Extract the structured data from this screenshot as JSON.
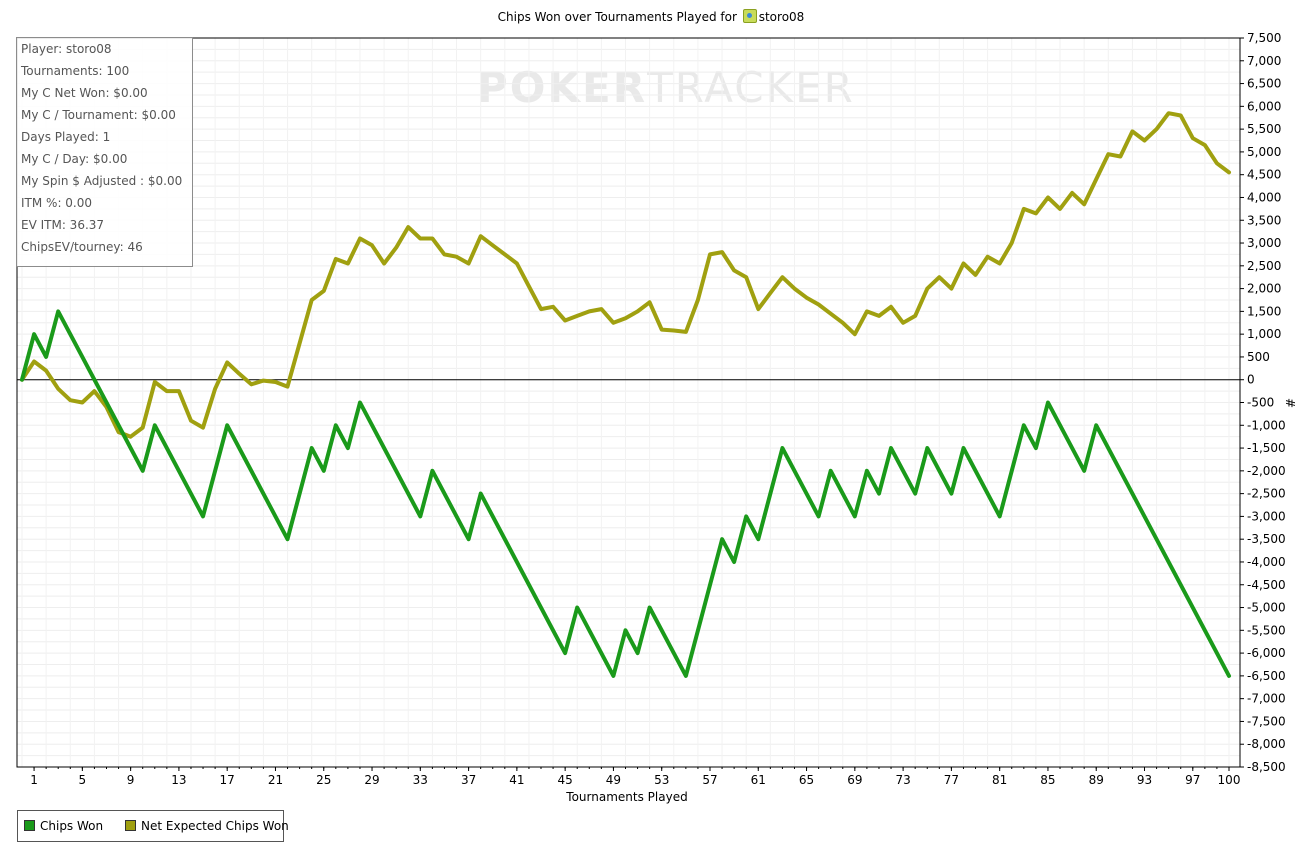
{
  "title": {
    "prefix": "Chips Won over Tournaments Played for",
    "player": "storo08"
  },
  "watermark": {
    "bold": "POKER",
    "thin": "TRACKER"
  },
  "stats": [
    "Player: storo08",
    "Tournaments: 100",
    "My C Net Won: $0.00",
    "My C / Tournament: $0.00",
    "Days Played: 1",
    "My C / Day: $0.00",
    "My Spin $ Adjusted : $0.00",
    "ITM %: 0.00",
    "EV ITM: 36.37",
    "ChipsEV/tourney: 46"
  ],
  "legend": [
    {
      "label": "Chips Won",
      "color": "#1a9a1a"
    },
    {
      "label": "Net Expected Chips Won",
      "color": "#a0a010"
    }
  ],
  "chart_data": {
    "type": "line",
    "title": "Chips Won over Tournaments Played for storo08",
    "xlabel": "Tournaments Played",
    "ylabel": "#",
    "xlim": [
      0,
      100
    ],
    "ylim": [
      -8500,
      7500
    ],
    "x_ticks": [
      1,
      5,
      9,
      13,
      17,
      21,
      25,
      29,
      33,
      37,
      41,
      45,
      49,
      53,
      57,
      61,
      65,
      69,
      73,
      77,
      81,
      85,
      89,
      93,
      97,
      100
    ],
    "y_ticks": [
      7500,
      7000,
      6500,
      6000,
      5500,
      5000,
      4500,
      4000,
      3500,
      3000,
      2500,
      2000,
      1500,
      1000,
      500,
      0,
      -500,
      -1000,
      -1500,
      -2000,
      -2500,
      -3000,
      -3500,
      -4000,
      -4500,
      -5000,
      -5500,
      -6000,
      -6500,
      -7000,
      -7500,
      -8000,
      -8500
    ],
    "y_tick_labels": [
      "7,500",
      "7,000",
      "6,500",
      "6,000",
      "5,500",
      "5,000",
      "4,500",
      "4,000",
      "3,500",
      "3,000",
      "2,500",
      "2,000",
      "1,500",
      "1,000",
      "500",
      "0",
      "-500",
      "-1,000",
      "-1,500",
      "-2,000",
      "-2,500",
      "-3,000",
      "-3,500",
      "-4,000",
      "-4,500",
      "-5,000",
      "-5,500",
      "-6,000",
      "-6,500",
      "-7,000",
      "-7,500",
      "-8,000",
      "-8,500"
    ],
    "grid": true,
    "legend_position": "bottom-left",
    "series": [
      {
        "name": "Chips Won",
        "color": "#1a9a1a",
        "points": [
          [
            0,
            0
          ],
          [
            1,
            1000
          ],
          [
            2,
            500
          ],
          [
            3,
            1500
          ],
          [
            10,
            -2000
          ],
          [
            11,
            -1000
          ],
          [
            15,
            -3000
          ],
          [
            17,
            -1000
          ],
          [
            22,
            -3500
          ],
          [
            24,
            -1500
          ],
          [
            25,
            -2000
          ],
          [
            26,
            -1000
          ],
          [
            27,
            -1500
          ],
          [
            28,
            -500
          ],
          [
            33,
            -3000
          ],
          [
            34,
            -2000
          ],
          [
            37,
            -3500
          ],
          [
            38,
            -2500
          ],
          [
            45,
            -6000
          ],
          [
            46,
            -5000
          ],
          [
            49,
            -6500
          ],
          [
            50,
            -5500
          ],
          [
            51,
            -6000
          ],
          [
            52,
            -5000
          ],
          [
            55,
            -6500
          ],
          [
            58,
            -3500
          ],
          [
            59,
            -4000
          ],
          [
            60,
            -3000
          ],
          [
            61,
            -3500
          ],
          [
            63,
            -1500
          ],
          [
            66,
            -3000
          ],
          [
            67,
            -2000
          ],
          [
            69,
            -3000
          ],
          [
            70,
            -2000
          ],
          [
            71,
            -2500
          ],
          [
            72,
            -1500
          ],
          [
            74,
            -2500
          ],
          [
            75,
            -1500
          ],
          [
            77,
            -2500
          ],
          [
            78,
            -1500
          ],
          [
            81,
            -3000
          ],
          [
            83,
            -1000
          ],
          [
            84,
            -1500
          ],
          [
            85,
            -500
          ],
          [
            88,
            -2000
          ],
          [
            89,
            -1000
          ],
          [
            100,
            -6500
          ]
        ]
      },
      {
        "name": "Net Expected Chips Won",
        "color": "#a0a010",
        "points": [
          [
            0,
            0
          ],
          [
            1,
            400
          ],
          [
            2,
            200
          ],
          [
            3,
            -200
          ],
          [
            4,
            -450
          ],
          [
            5,
            -500
          ],
          [
            6,
            -250
          ],
          [
            7,
            -600
          ],
          [
            8,
            -1150
          ],
          [
            9,
            -1250
          ],
          [
            10,
            -1050
          ],
          [
            11,
            -50
          ],
          [
            12,
            -250
          ],
          [
            13,
            -250
          ],
          [
            14,
            -900
          ],
          [
            15,
            -1050
          ],
          [
            16,
            -200
          ],
          [
            17,
            380
          ],
          [
            18,
            130
          ],
          [
            19,
            -100
          ],
          [
            20,
            -20
          ],
          [
            21,
            -50
          ],
          [
            22,
            -150
          ],
          [
            23,
            800
          ],
          [
            24,
            1750
          ],
          [
            25,
            1950
          ],
          [
            26,
            2650
          ],
          [
            27,
            2550
          ],
          [
            28,
            3100
          ],
          [
            29,
            2950
          ],
          [
            30,
            2550
          ],
          [
            31,
            2900
          ],
          [
            32,
            3350
          ],
          [
            33,
            3100
          ],
          [
            34,
            3100
          ],
          [
            35,
            2750
          ],
          [
            36,
            2700
          ],
          [
            37,
            2550
          ],
          [
            38,
            3150
          ],
          [
            39,
            2950
          ],
          [
            40,
            2750
          ],
          [
            41,
            2550
          ],
          [
            42,
            2050
          ],
          [
            43,
            1550
          ],
          [
            44,
            1600
          ],
          [
            45,
            1300
          ],
          [
            46,
            1400
          ],
          [
            47,
            1500
          ],
          [
            48,
            1550
          ],
          [
            49,
            1250
          ],
          [
            50,
            1350
          ],
          [
            51,
            1500
          ],
          [
            52,
            1700
          ],
          [
            53,
            1100
          ],
          [
            54,
            1080
          ],
          [
            55,
            1050
          ],
          [
            56,
            1750
          ],
          [
            57,
            2750
          ],
          [
            58,
            2800
          ],
          [
            59,
            2400
          ],
          [
            60,
            2250
          ],
          [
            61,
            1550
          ],
          [
            62,
            1900
          ],
          [
            63,
            2250
          ],
          [
            64,
            2000
          ],
          [
            65,
            1800
          ],
          [
            66,
            1650
          ],
          [
            67,
            1450
          ],
          [
            68,
            1250
          ],
          [
            69,
            1000
          ],
          [
            70,
            1500
          ],
          [
            71,
            1400
          ],
          [
            72,
            1600
          ],
          [
            73,
            1250
          ],
          [
            74,
            1400
          ],
          [
            75,
            2000
          ],
          [
            76,
            2250
          ],
          [
            77,
            2000
          ],
          [
            78,
            2550
          ],
          [
            79,
            2300
          ],
          [
            80,
            2700
          ],
          [
            81,
            2550
          ],
          [
            82,
            3000
          ],
          [
            83,
            3750
          ],
          [
            84,
            3650
          ],
          [
            85,
            4000
          ],
          [
            86,
            3750
          ],
          [
            87,
            4100
          ],
          [
            88,
            3850
          ],
          [
            89,
            4400
          ],
          [
            90,
            4950
          ],
          [
            91,
            4900
          ],
          [
            92,
            5450
          ],
          [
            93,
            5250
          ],
          [
            94,
            5500
          ],
          [
            95,
            5850
          ],
          [
            96,
            5800
          ],
          [
            97,
            5300
          ],
          [
            98,
            5150
          ],
          [
            99,
            4750
          ],
          [
            100,
            4550
          ]
        ]
      }
    ]
  }
}
